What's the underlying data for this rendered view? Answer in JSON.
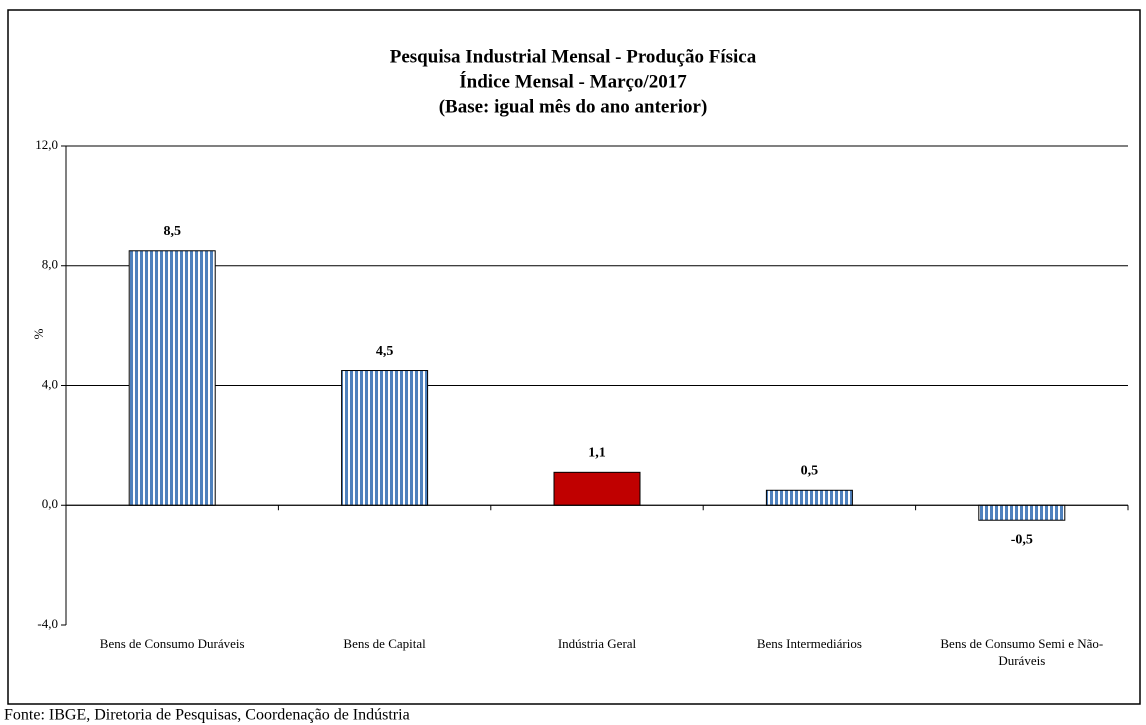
{
  "chart_data": {
    "type": "bar",
    "title": "Pesquisa Industrial Mensal - Produção Física",
    "subtitle": "Índice Mensal - Março/2017",
    "subtitle2": "(Base: igual mês do ano anterior)",
    "y_label": "%",
    "source": "Fonte: IBGE, Diretoria de Pesquisas, Coordenação de Indústria",
    "categories": [
      "Bens de Consumo Duráveis",
      "Bens de Capital",
      "Indústria Geral",
      "Bens Intermediários",
      "Bens de Consumo Semi e Não-Duráveis"
    ],
    "values": [
      8.5,
      4.5,
      1.1,
      0.5,
      -0.5
    ],
    "value_labels": [
      "8,5",
      "4,5",
      "1,1",
      "0,5",
      "-0,5"
    ],
    "colors": [
      "#4f81bd",
      "#4f81bd",
      "#c00000",
      "#4f81bd",
      "#4f81bd"
    ],
    "patterns": [
      "vertical-stripes",
      "vertical-stripes",
      "solid",
      "vertical-stripes",
      "vertical-stripes"
    ],
    "ylim": [
      -4,
      12
    ],
    "yticks": [
      {
        "value": -4,
        "label": "-4,0"
      },
      {
        "value": 0,
        "label": "0,0"
      },
      {
        "value": 4,
        "label": "4,0"
      },
      {
        "value": 8,
        "label": "8,0"
      },
      {
        "value": 12,
        "label": "12,0"
      }
    ],
    "grid": true
  }
}
